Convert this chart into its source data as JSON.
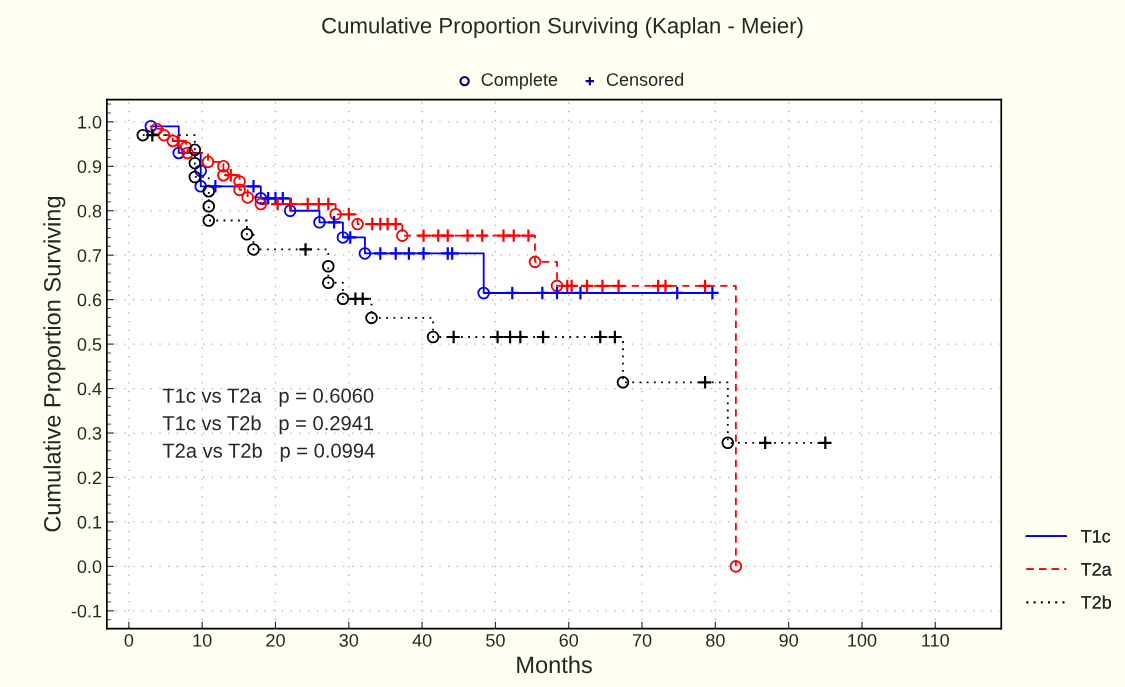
{
  "chart_data": {
    "type": "step",
    "title": "Cumulative Proportion Surviving (Kaplan - Meier)",
    "xlabel": "Months",
    "ylabel": "Cumulative Proportion Surviving",
    "xlim": [
      -3,
      119
    ],
    "ylim": [
      -0.14,
      1.05
    ],
    "xticks": [
      0,
      10,
      20,
      30,
      40,
      50,
      60,
      70,
      80,
      90,
      100,
      110
    ],
    "yticks": [
      {
        "value": -0.1,
        "label": "-0.1"
      },
      {
        "value": 0.0,
        "label": "0.0"
      },
      {
        "value": 0.1,
        "label": "0.1"
      },
      {
        "value": 0.2,
        "label": "0.2"
      },
      {
        "value": 0.3,
        "label": "0.3"
      },
      {
        "value": 0.4,
        "label": "0.4"
      },
      {
        "value": 0.5,
        "label": "0.5"
      },
      {
        "value": 0.6,
        "label": "0.6"
      },
      {
        "value": 0.7,
        "label": "0.7"
      },
      {
        "value": 0.8,
        "label": "0.8"
      },
      {
        "value": 0.9,
        "label": "0.9"
      },
      {
        "value": 1.0,
        "label": "1.0"
      }
    ],
    "grid": true,
    "legend": "bottom right",
    "annotations": [
      "Complete",
      "Censored",
      "T1c vs T2a   p = 0.6060",
      "T1c vs T2b   p = 0.2941",
      "T2a vs T2b   p = 0.0994"
    ],
    "series": [
      {
        "name": "T1c",
        "color": "#0000ff",
        "line_style": "solid",
        "x": [
          3,
          6.8,
          9.8,
          9.8,
          11.8,
          17,
          18,
          19,
          20,
          21,
          22,
          26,
          28,
          29.2,
          30.2,
          32.2,
          34.3,
          36.4,
          38.2,
          40.2,
          43.5,
          44.1,
          48.4,
          52.3,
          56.4,
          58.4,
          61.6,
          74.8,
          79.6
        ],
        "values": [
          0.99,
          0.93,
          0.89,
          0.855,
          0.855,
          0.855,
          0.828,
          0.828,
          0.828,
          0.828,
          0.8,
          0.774,
          0.774,
          0.74,
          0.74,
          0.704,
          0.704,
          0.704,
          0.704,
          0.704,
          0.704,
          0.704,
          0.615,
          0.615,
          0.615,
          0.615,
          0.615,
          0.615,
          0.615
        ]
      },
      {
        "name": "T2a",
        "color": "#ff0000",
        "line_style": "dashed",
        "x": [
          3.8,
          4.8,
          6,
          6.7,
          7.8,
          8,
          10.8,
          12.9,
          12.9,
          13.9,
          15.1,
          15.1,
          16.2,
          18,
          20.3,
          22.1,
          24.4,
          25.9,
          27.2,
          28.2,
          30,
          31.2,
          33.2,
          34.3,
          35.3,
          36.4,
          37.3,
          40.2,
          42.2,
          43.5,
          46.2,
          48.2,
          51.1,
          52.5,
          54.5,
          55.4,
          58.4,
          59.8,
          60.4,
          62.5,
          64.6,
          66.8,
          72.2,
          73.2,
          78.6,
          82.8
        ],
        "values": [
          0.984,
          0.97,
          0.957,
          0.957,
          0.943,
          0.93,
          0.91,
          0.9,
          0.88,
          0.88,
          0.866,
          0.847,
          0.83,
          0.815,
          0.815,
          0.815,
          0.815,
          0.815,
          0.815,
          0.792,
          0.792,
          0.77,
          0.77,
          0.77,
          0.77,
          0.77,
          0.744,
          0.744,
          0.744,
          0.744,
          0.744,
          0.744,
          0.744,
          0.744,
          0.744,
          0.685,
          0.631,
          0.631,
          0.631,
          0.631,
          0.631,
          0.631,
          0.631,
          0.631,
          0.631,
          0.0
        ]
      },
      {
        "name": "T2b",
        "color": "#000000",
        "line_style": "dotted",
        "x": [
          1.9,
          3.2,
          9,
          9,
          9,
          10.9,
          10.9,
          10.9,
          16.1,
          17,
          24.1,
          27.2,
          27.2,
          29.2,
          30.9,
          31.9,
          33.1,
          41.5,
          44.3,
          50.3,
          52,
          53.4,
          56.5,
          64.3,
          66.3,
          67.4,
          78.6,
          81.7,
          86.8,
          95
        ],
        "values": [
          0.97,
          0.97,
          0.937,
          0.907,
          0.876,
          0.844,
          0.81,
          0.778,
          0.747,
          0.713,
          0.713,
          0.675,
          0.638,
          0.602,
          0.602,
          0.602,
          0.559,
          0.516,
          0.516,
          0.516,
          0.516,
          0.516,
          0.516,
          0.516,
          0.516,
          0.414,
          0.414,
          0.278,
          0.278,
          0.278
        ]
      },
      {
        "type": "scatter",
        "marker": "circle",
        "color": "#000080",
        "x": [
          3,
          6.8,
          9.8,
          9.8,
          18,
          22,
          26,
          29.2,
          32.2,
          48.4,
          3.8,
          4.8,
          6,
          7.8,
          8,
          10.8,
          12.9,
          12.9,
          15.1,
          15.1,
          16.2,
          18,
          28.2,
          31.2,
          37.3,
          55.4,
          58.4,
          82.8,
          1.9,
          9,
          9,
          9,
          10.9,
          10.9,
          10.9,
          16.1,
          17,
          27.2,
          27.2,
          29.2,
          33.1,
          41.5,
          67.4,
          81.7
        ],
        "values": [
          0.99,
          0.93,
          0.89,
          0.855,
          0.828,
          0.8,
          0.774,
          0.74,
          0.704,
          0.615,
          0.984,
          0.97,
          0.957,
          0.943,
          0.93,
          0.91,
          0.9,
          0.88,
          0.866,
          0.847,
          0.83,
          0.815,
          0.792,
          0.77,
          0.744,
          0.685,
          0.631,
          0.0,
          0.97,
          0.937,
          0.907,
          0.876,
          0.844,
          0.81,
          0.778,
          0.747,
          0.713,
          0.675,
          0.638,
          0.602,
          0.559,
          0.516,
          0.414,
          0.278
        ],
        "colors": [
          "#0000ff",
          "#0000ff",
          "#0000ff",
          "#0000ff",
          "#0000ff",
          "#0000ff",
          "#0000ff",
          "#0000ff",
          "#0000ff",
          "#0000ff",
          "#ff0000",
          "#ff0000",
          "#ff0000",
          "#ff0000",
          "#ff0000",
          "#ff0000",
          "#ff0000",
          "#ff0000",
          "#ff0000",
          "#ff0000",
          "#ff0000",
          "#ff0000",
          "#ff0000",
          "#ff0000",
          "#ff0000",
          "#ff0000",
          "#ff0000",
          "#ff0000",
          "#000000",
          "#000000",
          "#000000",
          "#000000",
          "#000000",
          "#000000",
          "#000000",
          "#000000",
          "#000000",
          "#000000",
          "#000000",
          "#000000",
          "#000000",
          "#000000",
          "#000000",
          "#000000"
        ]
      },
      {
        "type": "scatter",
        "marker": "cross",
        "color": "#000080",
        "x": [
          11.8,
          17,
          19,
          20,
          21,
          28,
          30.2,
          34.3,
          36.4,
          38.2,
          40.2,
          43.5,
          44.1,
          52.3,
          56.4,
          58.4,
          61.6,
          74.8,
          79.6,
          6.7,
          13.9,
          20.3,
          22.1,
          24.4,
          25.9,
          27.2,
          30,
          33.2,
          34.3,
          35.3,
          36.4,
          40.2,
          42.2,
          43.5,
          46.2,
          48.2,
          51.1,
          52.5,
          54.5,
          59.8,
          60.4,
          62.5,
          64.6,
          66.8,
          72.2,
          73.2,
          78.6,
          3.2,
          24.1,
          30.9,
          31.9,
          44.3,
          50.3,
          52,
          53.4,
          56.5,
          64.3,
          66.3,
          78.6,
          86.8,
          95
        ],
        "values": [
          0.855,
          0.855,
          0.828,
          0.828,
          0.828,
          0.774,
          0.74,
          0.704,
          0.704,
          0.704,
          0.704,
          0.704,
          0.704,
          0.615,
          0.615,
          0.615,
          0.615,
          0.615,
          0.615,
          0.957,
          0.88,
          0.815,
          0.815,
          0.815,
          0.815,
          0.815,
          0.792,
          0.77,
          0.77,
          0.77,
          0.77,
          0.744,
          0.744,
          0.744,
          0.744,
          0.744,
          0.744,
          0.744,
          0.744,
          0.631,
          0.631,
          0.631,
          0.631,
          0.631,
          0.631,
          0.631,
          0.631,
          0.97,
          0.713,
          0.602,
          0.602,
          0.516,
          0.516,
          0.516,
          0.516,
          0.516,
          0.516,
          0.516,
          0.414,
          0.278,
          0.278
        ],
        "colors": [
          "#0000ff",
          "#0000ff",
          "#0000ff",
          "#0000ff",
          "#0000ff",
          "#0000ff",
          "#0000ff",
          "#0000ff",
          "#0000ff",
          "#0000ff",
          "#0000ff",
          "#0000ff",
          "#0000ff",
          "#0000ff",
          "#0000ff",
          "#0000ff",
          "#0000ff",
          "#0000ff",
          "#0000ff",
          "#ff0000",
          "#ff0000",
          "#ff0000",
          "#ff0000",
          "#ff0000",
          "#ff0000",
          "#ff0000",
          "#ff0000",
          "#ff0000",
          "#ff0000",
          "#ff0000",
          "#ff0000",
          "#ff0000",
          "#ff0000",
          "#ff0000",
          "#ff0000",
          "#ff0000",
          "#ff0000",
          "#ff0000",
          "#ff0000",
          "#ff0000",
          "#ff0000",
          "#ff0000",
          "#ff0000",
          "#ff0000",
          "#ff0000",
          "#ff0000",
          "#ff0000",
          "#000000",
          "#000000",
          "#000000",
          "#000000",
          "#000000",
          "#000000",
          "#000000",
          "#000000",
          "#000000",
          "#000000",
          "#000000",
          "#000000",
          "#000000",
          "#000000"
        ]
      }
    ]
  }
}
